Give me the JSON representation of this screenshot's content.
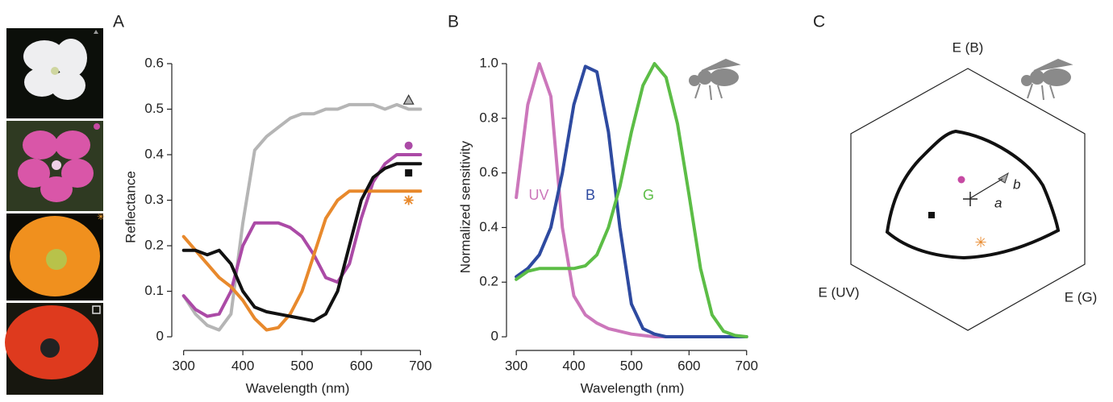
{
  "chart_data": [
    {
      "type": "line",
      "panel_label": "A",
      "x_label": "Wavelength (nm)",
      "y_label": "Reflectance",
      "x": [
        300,
        320,
        340,
        360,
        380,
        400,
        420,
        440,
        460,
        480,
        500,
        520,
        540,
        560,
        580,
        600,
        620,
        640,
        660,
        680,
        700
      ],
      "xlim": [
        280,
        705
      ],
      "xticks": [
        300,
        400,
        500,
        600,
        700
      ],
      "ylim": [
        -0.03,
        0.6
      ],
      "yticks": [
        0,
        0.1,
        0.2,
        0.3,
        0.4,
        0.5,
        0.6
      ],
      "series": [
        {
          "color": "#b5b5b5",
          "marker": "triangle",
          "marker_x": 680,
          "marker_y": 0.52,
          "values": [
            0.09,
            0.05,
            0.025,
            0.015,
            0.05,
            0.25,
            0.41,
            0.44,
            0.46,
            0.48,
            0.49,
            0.49,
            0.5,
            0.5,
            0.51,
            0.51,
            0.51,
            0.5,
            0.51,
            0.5,
            0.5
          ]
        },
        {
          "color": "#ab4aa6",
          "marker": "circle",
          "marker_x": 680,
          "marker_y": 0.42,
          "values": [
            0.09,
            0.06,
            0.045,
            0.05,
            0.1,
            0.2,
            0.25,
            0.25,
            0.25,
            0.24,
            0.22,
            0.18,
            0.13,
            0.12,
            0.16,
            0.26,
            0.34,
            0.38,
            0.4,
            0.4,
            0.4
          ]
        },
        {
          "color": "#e8892c",
          "marker": "asterisk",
          "marker_x": 680,
          "marker_y": 0.3,
          "values": [
            0.22,
            0.19,
            0.16,
            0.13,
            0.11,
            0.08,
            0.04,
            0.015,
            0.02,
            0.05,
            0.1,
            0.18,
            0.26,
            0.3,
            0.32,
            0.32,
            0.32,
            0.32,
            0.32,
            0.32,
            0.32
          ]
        },
        {
          "color": "#111111",
          "marker": "square",
          "marker_x": 680,
          "marker_y": 0.36,
          "values": [
            0.19,
            0.19,
            0.18,
            0.19,
            0.16,
            0.1,
            0.065,
            0.055,
            0.05,
            0.045,
            0.04,
            0.035,
            0.05,
            0.1,
            0.2,
            0.3,
            0.35,
            0.37,
            0.38,
            0.38,
            0.38
          ]
        }
      ]
    },
    {
      "type": "line",
      "panel_label": "B",
      "x_label": "Wavelength (nm)",
      "y_label": "Normalized sensitivity",
      "x": [
        300,
        320,
        340,
        360,
        380,
        400,
        420,
        440,
        460,
        480,
        500,
        520,
        540,
        560,
        580,
        600,
        620,
        640,
        660,
        680,
        700
      ],
      "xlim": [
        283,
        720
      ],
      "xticks": [
        300,
        400,
        500,
        600,
        700
      ],
      "ylim": [
        -0.05,
        1.0
      ],
      "yticks": [
        0,
        0.2,
        0.4,
        0.6,
        0.8,
        {
          "value": 1,
          "label": "1.0"
        }
      ],
      "series": [
        {
          "name": "UV",
          "color": "#cc77bb",
          "values": [
            0.51,
            0.85,
            1.0,
            0.88,
            0.4,
            0.15,
            0.08,
            0.05,
            0.03,
            0.02,
            0.01,
            0.005,
            0,
            0,
            0,
            0,
            0,
            0,
            0,
            0,
            0
          ]
        },
        {
          "name": "B",
          "color": "#2e4aa0",
          "values": [
            0.22,
            0.25,
            0.3,
            0.4,
            0.6,
            0.85,
            0.99,
            0.97,
            0.75,
            0.4,
            0.12,
            0.03,
            0.01,
            0,
            0,
            0,
            0,
            0,
            0,
            0,
            0
          ]
        },
        {
          "name": "G",
          "color": "#5cbd46",
          "values": [
            0.21,
            0.24,
            0.25,
            0.25,
            0.25,
            0.25,
            0.26,
            0.3,
            0.4,
            0.55,
            0.75,
            0.92,
            1.0,
            0.95,
            0.78,
            0.52,
            0.25,
            0.08,
            0.02,
            0.005,
            0
          ]
        }
      ]
    }
  ],
  "diagram": {
    "panel_label": "C",
    "vertex_top": "E (B)",
    "vertex_left": "E (UV)",
    "vertex_right": "E (G)",
    "label_a": "a",
    "label_b": "b"
  }
}
